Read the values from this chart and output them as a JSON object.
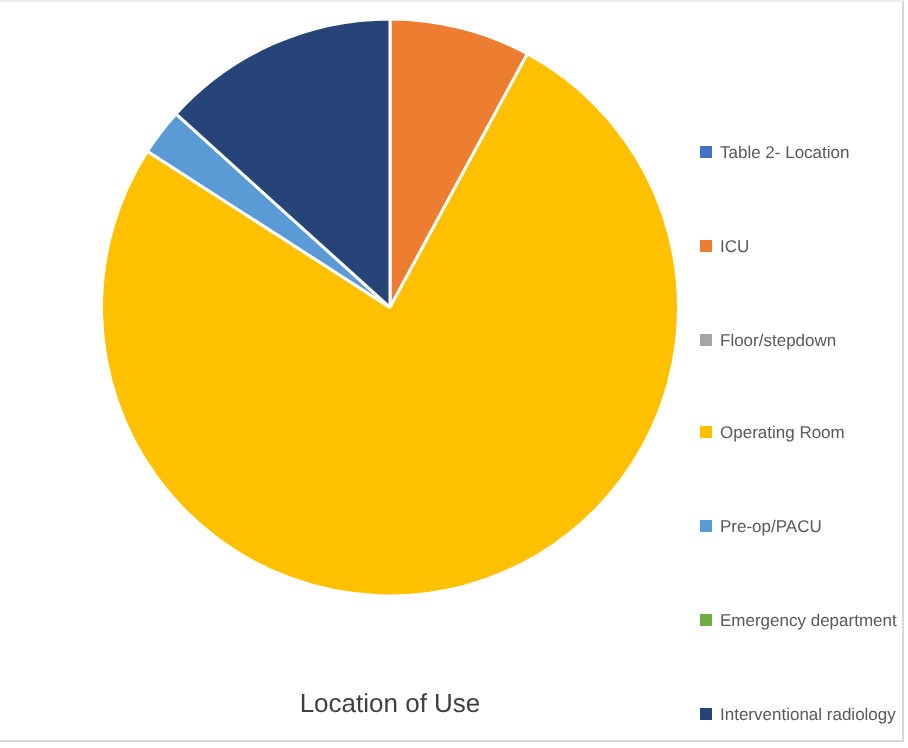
{
  "chart_data": {
    "type": "pie",
    "title": "Location of Use",
    "categories": [
      "Table 2- Location",
      "ICU",
      "Floor/stepdown",
      "Operating Room",
      "Pre-op/PACU",
      "Emergency department",
      "Interventional radiology"
    ],
    "values": [
      0,
      7.9,
      0,
      76.2,
      2.6,
      0,
      13.3
    ],
    "colors": [
      "#4472c4",
      "#ed7d31",
      "#a5a5a5",
      "#ffc000",
      "#5b9bd5",
      "#70ad47",
      "#264478"
    ],
    "legend": "right"
  }
}
